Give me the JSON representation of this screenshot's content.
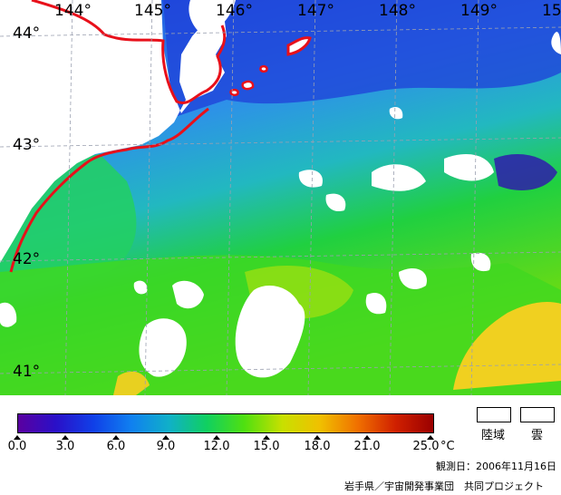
{
  "map": {
    "longitude_labels": [
      "144°",
      "145°",
      "146°",
      "147°",
      "148°",
      "149°",
      "15"
    ],
    "latitude_labels": [
      "44°",
      "43°",
      "42°",
      "41°"
    ],
    "colors": {
      "coast": "#e8101a",
      "cloud": "#ffffff",
      "grid": "#9aa0b0",
      "cold": "#1f4fe0",
      "mid": "#2e8fea",
      "warm": "#20d040",
      "warmer": "#8ae000",
      "hot": "#f0d020"
    }
  },
  "legend": {
    "tick_labels": [
      "0.0",
      "3.0",
      "6.0",
      "9.0",
      "12.0",
      "15.0",
      "18.0",
      "21.0",
      "25.0"
    ],
    "unit": "°C",
    "land_label": "陸域",
    "cloud_label": "雲",
    "gradient": [
      "#5a00a0",
      "#2a10c8",
      "#1040e8",
      "#1080f0",
      "#10b0c8",
      "#10d060",
      "#50e010",
      "#c8e000",
      "#f0c000",
      "#f07000",
      "#d02000",
      "#9a0000"
    ]
  },
  "footer": {
    "observation_date": "観測日：2006年11月16日",
    "credit": "岩手県／宇宙開発事業団　共同プロジェクト"
  }
}
